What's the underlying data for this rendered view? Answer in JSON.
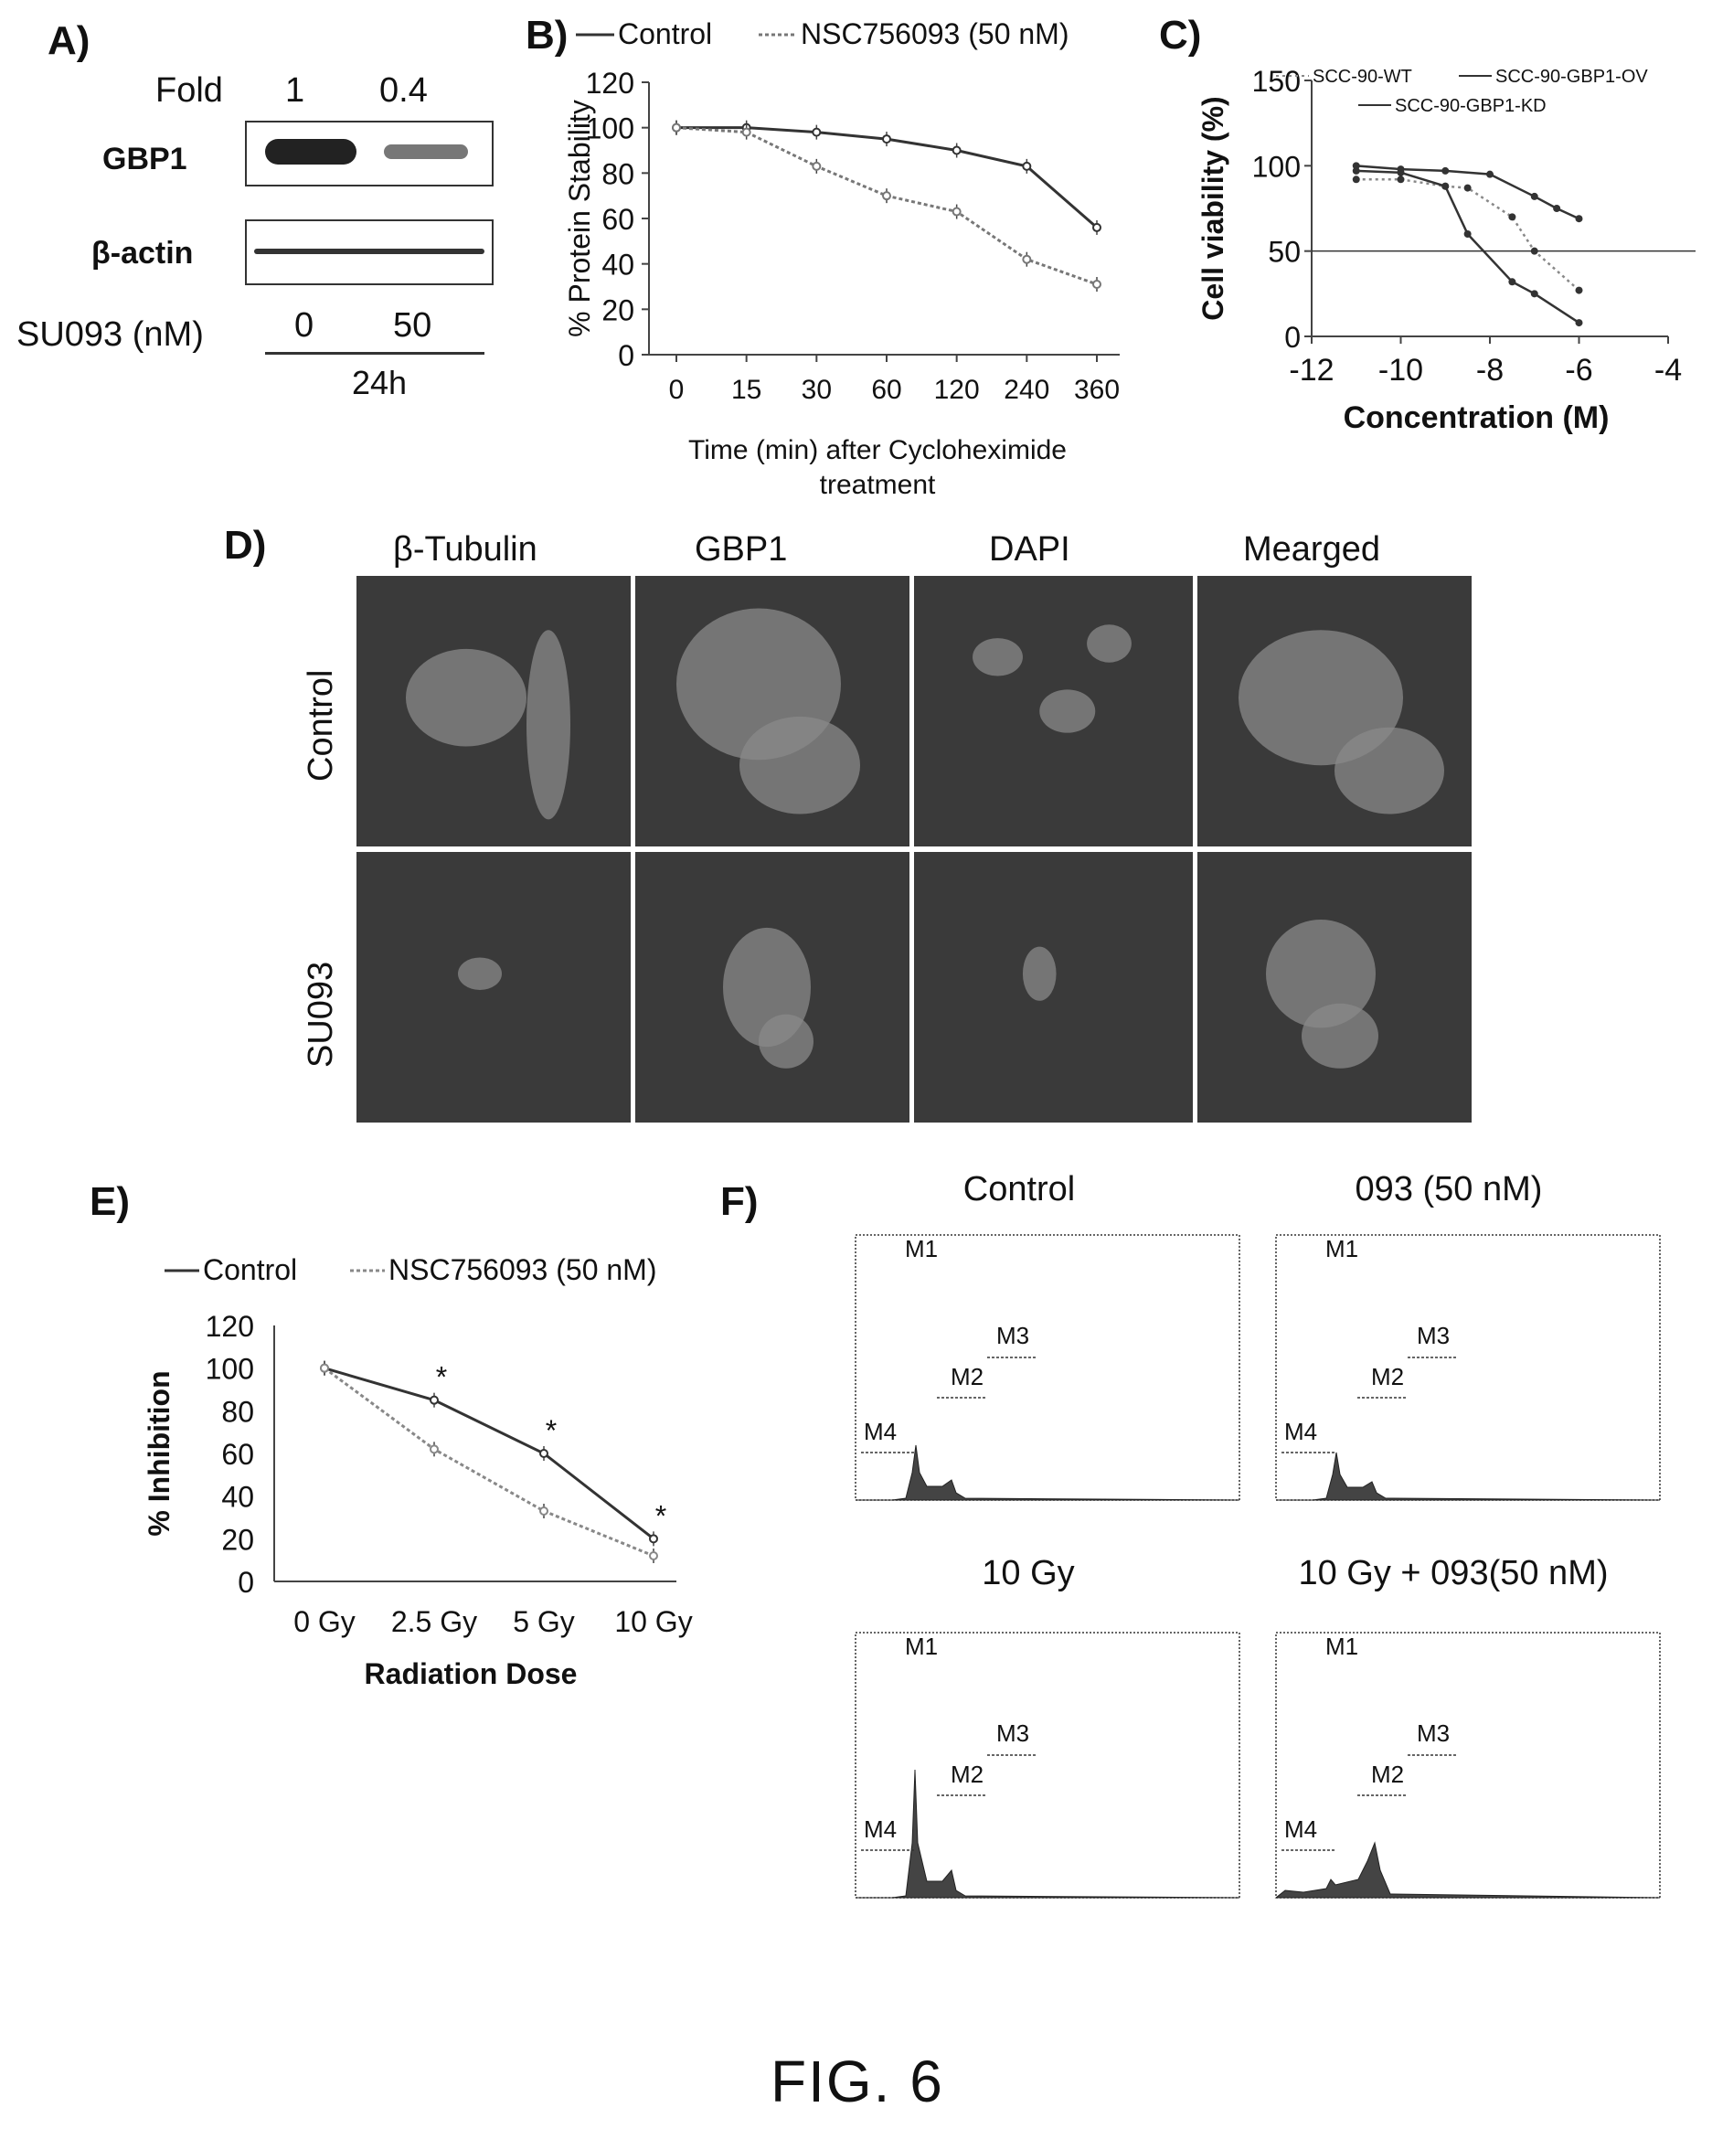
{
  "figure_label": "FIG. 6",
  "panels": {
    "A": {
      "label": "A)",
      "fold_label": "Fold",
      "fold_values": [
        "1",
        "0.4"
      ],
      "bands": [
        "GBP1",
        "β-actin"
      ],
      "dose_label": "SU093 (nM)",
      "doses": [
        "0",
        "50"
      ],
      "time": "24h"
    },
    "D": {
      "label": "D)",
      "columns": [
        "β-Tubulin",
        "GBP1",
        "DAPI",
        "Mearged"
      ],
      "rows": [
        "Control",
        "SU093"
      ]
    },
    "F": {
      "label": "F)",
      "titles": [
        "Control",
        "093 (50 nM)",
        "10 Gy",
        "10 Gy + 093(50 nM)"
      ],
      "gates": [
        "M1",
        "M2",
        "M3",
        "M4"
      ]
    }
  },
  "chart_data": [
    {
      "id": "B",
      "panel_label": "B)",
      "type": "line",
      "categories": [
        "0",
        "15",
        "30",
        "60",
        "120",
        "240",
        "360"
      ],
      "series": [
        {
          "name": "Control",
          "values": [
            100,
            100,
            98,
            95,
            90,
            83,
            56
          ]
        },
        {
          "name": "NSC756093 (50 nM)",
          "values": [
            100,
            98,
            83,
            70,
            63,
            42,
            31
          ]
        }
      ],
      "ylabel": "% Protein Stability",
      "xlabel": "Time (min) after Cycloheximide treatment",
      "yticks": [
        "0",
        "20",
        "40",
        "60",
        "80",
        "100",
        "120"
      ],
      "ylim": [
        0,
        120
      ],
      "legend": "top"
    },
    {
      "id": "C",
      "panel_label": "C)",
      "type": "scatter",
      "series": [
        {
          "name": "SCC-90-WT",
          "x": [
            -11,
            -10,
            -9,
            -8.5,
            -7.5,
            -7,
            -6
          ],
          "y": [
            92,
            92,
            88,
            87,
            70,
            50,
            27
          ]
        },
        {
          "name": "SCC-90-GBP1-OV",
          "x": [
            -11,
            -10,
            -9,
            -8.5,
            -7.5,
            -7,
            -6
          ],
          "y": [
            97,
            96,
            88,
            60,
            32,
            25,
            8
          ]
        },
        {
          "name": "SCC-90-GBP1-KD",
          "x": [
            -11,
            -10,
            -9,
            -8,
            -7,
            -6.5,
            -6
          ],
          "y": [
            100,
            98,
            97,
            95,
            82,
            75,
            69
          ]
        }
      ],
      "ylabel": "Cell viability (%)",
      "xlabel": "Concentration (M)",
      "xticks": [
        "-12",
        "-10",
        "-8",
        "-6",
        "-4"
      ],
      "yticks": [
        "0",
        "50",
        "100",
        "150"
      ],
      "xlim": [
        -12,
        -4
      ],
      "ylim": [
        0,
        150
      ],
      "reference_line_y": 50,
      "legend": "top"
    },
    {
      "id": "E",
      "panel_label": "E)",
      "type": "line",
      "categories": [
        "0 Gy",
        "2.5 Gy",
        "5 Gy",
        "10 Gy"
      ],
      "series": [
        {
          "name": "Control",
          "values": [
            100,
            85,
            60,
            20
          ]
        },
        {
          "name": "NSC756093 (50 nM)",
          "values": [
            100,
            62,
            33,
            12
          ]
        }
      ],
      "significance": [
        "",
        "*",
        "*",
        "*"
      ],
      "ylabel": "% Inhibition",
      "xlabel": "Radiation Dose",
      "yticks": [
        "0",
        "20",
        "40",
        "60",
        "80",
        "100",
        "120"
      ],
      "ylim": [
        0,
        120
      ],
      "legend": "top"
    }
  ]
}
